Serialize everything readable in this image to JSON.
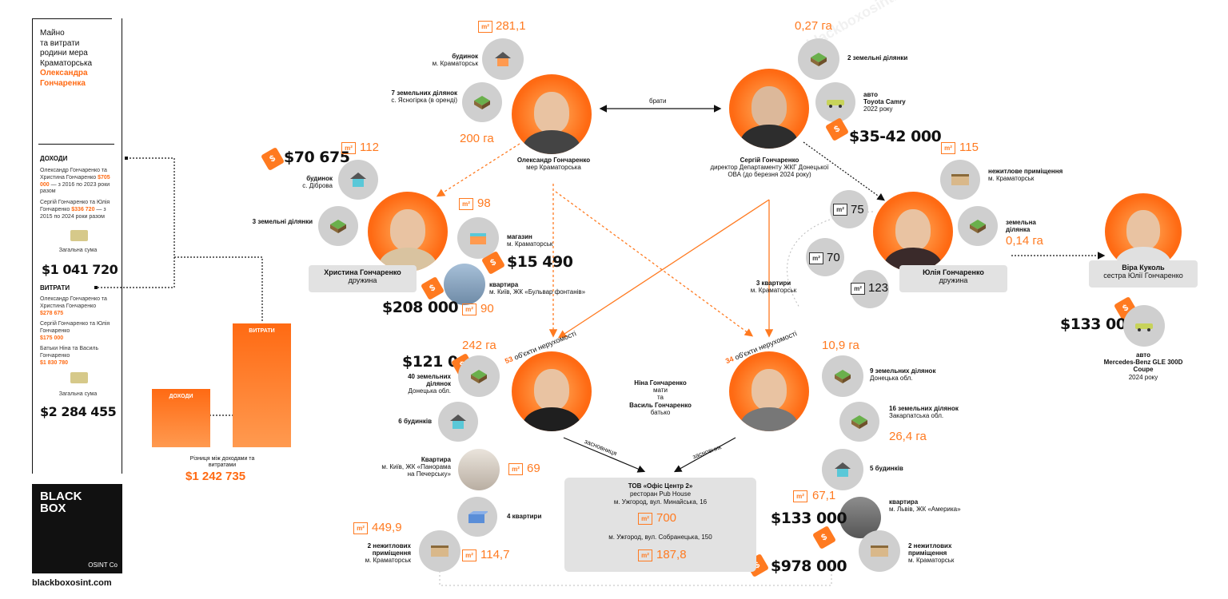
{
  "sidebar": {
    "title_line1": "Майно",
    "title_line2": "та витрати",
    "title_line3": "родини мера",
    "title_line4": "Краматорська",
    "title_name1": "Олександра",
    "title_name2": "Гончаренка",
    "income_heading": "ДОХОДИ",
    "income1_names": "Олександр Гончаренко та Христина Гончаренко",
    "income1_amount": "$705 000",
    "income1_period": "— з 2016 по 2023 роки разом",
    "income2_names": "Сергій Гончаренко та Юлія Гончаренко",
    "income2_amount": "$336 720",
    "income2_period": "— з 2015 по 2024 роки разом",
    "income_total_label": "Загальна сума",
    "income_total": "$1 041 720",
    "expense_heading": "ВИТРАТИ",
    "exp1_names": "Олександр Гончаренко та Христина Гончаренко",
    "exp1_amount": "$278 675",
    "exp2_names": "Сергій Гончаренко та Юлія Гончаренко",
    "exp2_amount": "$175 000",
    "exp3_names": "Батьки Ніна та Василь Гончаренко",
    "exp3_amount": "$1 830 780",
    "expense_total_label": "Загальна сума",
    "expense_total": "$2 284 455",
    "bar_income": "ДОХОДИ",
    "bar_expense": "ВИТРАТИ",
    "diff_label": "Різниця між доходами та витратами",
    "diff_value": "$1 242 735",
    "brand_black": "BLACK",
    "brand_box": "BOX",
    "brand_osint": "OSINT Co",
    "brand_url": "blackboxosint.com"
  },
  "oleksandr": {
    "name": "Олександр Гончаренко",
    "role": "мер Краматорська",
    "house_label": "будинок",
    "house_place": "м. Краматорськ",
    "house_area": "281,1",
    "land_label": "7 земельних ділянок",
    "land_place": "с. Ясногірка (в оренді)",
    "land_area": "200 га"
  },
  "brothers_label": "брати",
  "serhii": {
    "name": "Сергій Гончаренко",
    "role": "директор Департаменту ЖКГ Донецької ОВА (до березня 2024 року)",
    "land_area": "0,27 га",
    "land_label": "2 земельні ділянки",
    "car_label": "авто",
    "car_model": "Toyota Camry",
    "car_year": "2022 року",
    "car_price": "$35-42 000"
  },
  "khrystyna": {
    "name": "Христина Гончаренко",
    "role": "дружина",
    "house_price": "$70 675",
    "house_area": "112",
    "house_label": "будинок",
    "house_place": "с. Діброва",
    "land_label": "3 земельні ділянки",
    "shop_area": "98",
    "shop_label": "магазин",
    "shop_place": "м. Краматорськ",
    "shop_price": "$15 490",
    "flat_label": "квартира",
    "flat_place": "м. Київ, ЖК «Бульвар фонтанів»",
    "flat_price": "$208 000",
    "flat_area": "90"
  },
  "yulia": {
    "name": "Юлія Гончаренко",
    "role": "дружина",
    "nonres_area": "115",
    "nonres_label": "нежитлове приміщення",
    "nonres_place": "м. Краматорськ",
    "land_label": "земельна ділянка",
    "land_area": "0,14 га",
    "flats_label": "3 квартири",
    "flats_place": "м. Краматорськ",
    "flat1": "75",
    "flat2": "70",
    "flat3": "123"
  },
  "vira": {
    "name": "Віра Куколь",
    "role": "сестра Юлії Гончаренко",
    "car_price": "$133 000",
    "car_label": "авто",
    "car_model": "Mercedes-Benz GLE 300D Coupe",
    "car_year": "2024 року"
  },
  "nina": {
    "objects_count": "53",
    "objects_label": "об'єкти нерухомості",
    "land_price": "$121 00",
    "land_area": "242 га",
    "land_label": "40 земельних ділянок",
    "land_place": "Донецька обл.",
    "houses_label": "6 будинків",
    "flat_label": "Квартира",
    "flat_place": "м. Київ, ЖК «Панорама на Печерську»",
    "flat_area": "69",
    "flats4_label": "4 квартири",
    "nonres_area1": "449,9",
    "nonres_label": "2 нежитлових приміщення",
    "nonres_place": "м. Краматорськ",
    "nonres_area2": "114,7"
  },
  "parents": {
    "nina_name": "Ніна Гончаренко",
    "nina_role": "мати",
    "and": "та",
    "vasyl_name": "Василь Гончаренко",
    "vasyl_role": "батько"
  },
  "vasyl": {
    "objects_count": "34",
    "objects_label": "об'єкти нерухомості",
    "land1_area": "10,9 га",
    "land1_label": "9 земельних ділянок",
    "land1_place": "Донецька обл.",
    "land2_label": "16 земельних ділянок",
    "land2_place": "Закарпатська обл.",
    "land2_area": "26,4 га",
    "houses_label": "5 будинків",
    "flat_area": "67,1",
    "flat_label": "квартира",
    "flat_place": "м. Львів, ЖК «Америка»",
    "flat_price": "$133 000",
    "nonres_label": "2 нежитлових приміщення",
    "nonres_place": "м. Краматорськ",
    "nonres_price": "$978 000"
  },
  "company": {
    "founder_f": "засновниця",
    "founder_m": "засновник",
    "name": "ТОВ «Офіс Центр 2»",
    "desc": "ресторан Pub House",
    "address1": "м. Ужгород, вул. Минайська, 16",
    "area1": "700",
    "address2": "м. Ужгород, вул. Собранецька, 150",
    "area2": "187,8"
  },
  "unit_m2": "m²",
  "watermark": "blackboxosint.com"
}
